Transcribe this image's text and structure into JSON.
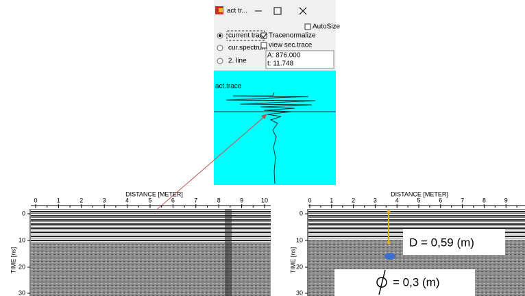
{
  "window": {
    "title": "act tr...",
    "radios": [
      "current trace",
      "cur.spectrum",
      "2. line"
    ],
    "checkboxes": [
      "AutoSize",
      "Tracenormalize",
      "view sec.trace"
    ],
    "readout": [
      "A: 876.000",
      "t: 11.748"
    ],
    "panel_label": "act.trace"
  },
  "left": {
    "axis_title": "DISTANCE [METER]",
    "xticks": [
      "0",
      "1",
      "2",
      "3",
      "4",
      "5",
      "6",
      "7",
      "8",
      "9",
      "10"
    ],
    "y_title": "TIME [ns]",
    "yticks": [
      "0",
      "10",
      "20",
      "30"
    ]
  },
  "right": {
    "axis_title": "DISTANCE [METER]",
    "xticks": [
      "0",
      "1",
      "2",
      "3",
      "4",
      "5",
      "6",
      "7",
      "8",
      "9"
    ],
    "y_title": "TIME [ns]",
    "yticks": [
      "0",
      "10",
      "20",
      "30"
    ],
    "annotations": [
      "D = 0,59 (m)",
      "= 0,3 (m)"
    ]
  }
}
